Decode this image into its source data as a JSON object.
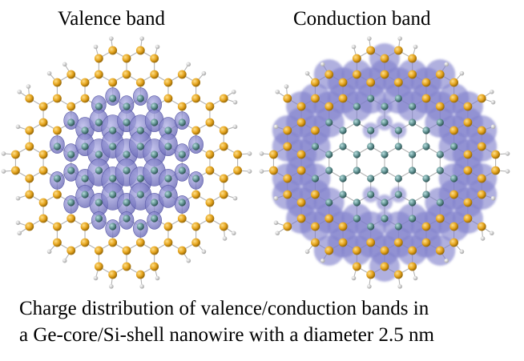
{
  "panels": [
    {
      "title": "Valence band"
    },
    {
      "title": "Conduction band"
    }
  ],
  "caption": {
    "line1": "Charge distribution of  valence/conduction bands in",
    "line2": "a Ge-core/Si-shell nanowire with a diameter 2.5 nm"
  },
  "colors": {
    "si_atom": "#e4a31c",
    "ge_atom": "#5f9090",
    "h_atom": "#e8e8e8",
    "bond": "#b3b3b3",
    "density": "#7b7bc6"
  }
}
